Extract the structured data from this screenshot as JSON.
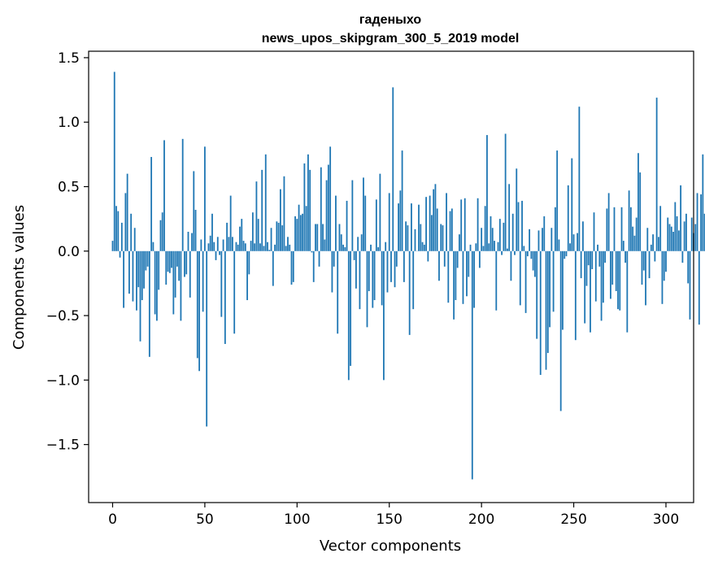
{
  "chart_data": {
    "type": "bar",
    "title_line1": "гаденыхо",
    "title_line2": "news_upos_skipgram_300_5_2019 model",
    "xlabel": "Vector components",
    "ylabel": "Components values",
    "xlim": [
      -13,
      315
    ],
    "ylim": [
      -1.95,
      1.55
    ],
    "x_ticks": [
      0,
      50,
      100,
      150,
      200,
      250,
      300
    ],
    "x_tick_labels": [
      "0",
      "50",
      "100",
      "150",
      "200",
      "250",
      "300"
    ],
    "y_ticks": [
      1.5,
      1.0,
      0.5,
      0.0,
      -0.5,
      -1.0,
      -1.5
    ],
    "y_tick_labels": [
      "1.5",
      "1.0",
      "0.5",
      "0.0",
      "−0.5",
      "−1.0",
      "−1.5"
    ],
    "bar_color": "#1f77b4",
    "grid": false,
    "values": [
      0.08,
      1.39,
      0.35,
      0.31,
      -0.05,
      0.22,
      -0.44,
      0.45,
      0.6,
      -0.33,
      0.29,
      -0.39,
      0.18,
      -0.46,
      -0.28,
      -0.7,
      -0.38,
      -0.29,
      -0.15,
      -0.12,
      -0.82,
      0.73,
      0.07,
      -0.49,
      -0.54,
      -0.3,
      0.24,
      0.3,
      0.86,
      -0.26,
      -0.16,
      -0.17,
      -0.13,
      -0.49,
      -0.36,
      -0.12,
      -0.23,
      -0.54,
      0.87,
      -0.2,
      -0.18,
      0.15,
      -0.36,
      0.14,
      0.62,
      0.32,
      -0.83,
      -0.93,
      0.09,
      -0.47,
      0.81,
      -1.36,
      0.06,
      0.12,
      0.29,
      0.07,
      -0.07,
      0.11,
      -0.03,
      -0.51,
      0.09,
      -0.72,
      0.22,
      0.11,
      0.43,
      0.11,
      -0.64,
      0.07,
      0.05,
      0.19,
      0.25,
      0.08,
      0.06,
      -0.38,
      -0.18,
      0.08,
      0.3,
      0.06,
      0.54,
      0.25,
      0.06,
      0.63,
      0.04,
      0.75,
      0.07,
      0.01,
      0.18,
      -0.27,
      0.05,
      0.23,
      0.22,
      0.48,
      0.2,
      0.58,
      0.04,
      0.11,
      0.05,
      -0.26,
      -0.24,
      0.27,
      0.25,
      0.36,
      0.28,
      0.29,
      0.68,
      0.35,
      0.75,
      0.63,
      -0.01,
      -0.24,
      0.21,
      0.21,
      -0.12,
      0.65,
      0.21,
      0.09,
      0.55,
      0.67,
      0.81,
      -0.32,
      -0.12,
      0.43,
      -0.64,
      0.21,
      0.13,
      0.05,
      0.03,
      0.39,
      -1.0,
      -0.89,
      0.55,
      -0.07,
      -0.29,
      0.11,
      -0.45,
      0.13,
      0.57,
      0.43,
      -0.59,
      -0.31,
      0.05,
      -0.44,
      -0.38,
      0.4,
      0.03,
      0.6,
      -0.42,
      -1.0,
      0.07,
      -0.32,
      0.45,
      -0.24,
      1.27,
      -0.28,
      -0.12,
      0.37,
      0.47,
      0.78,
      -0.24,
      0.23,
      0.2,
      -0.65,
      0.37,
      -0.45,
      0.17,
      0.0,
      0.36,
      0.21,
      0.07,
      0.05,
      0.42,
      -0.08,
      0.43,
      0.28,
      0.48,
      0.52,
      0.33,
      -0.23,
      0.21,
      0.2,
      -0.12,
      0.45,
      -0.4,
      0.31,
      0.33,
      -0.53,
      -0.38,
      -0.13,
      0.13,
      0.4,
      -0.41,
      0.41,
      -0.35,
      -0.2,
      0.05,
      -1.77,
      -0.44,
      0.06,
      0.41,
      -0.13,
      0.18,
      0.04,
      0.35,
      0.9,
      0.06,
      0.27,
      0.18,
      0.08,
      -0.46,
      0.07,
      0.25,
      -0.03,
      0.22,
      0.91,
      0.02,
      0.52,
      -0.23,
      0.29,
      -0.03,
      0.64,
      0.38,
      -0.42,
      0.39,
      0.04,
      -0.48,
      -0.04,
      0.17,
      -0.06,
      -0.15,
      -0.2,
      -0.68,
      0.16,
      -0.96,
      0.18,
      0.27,
      -0.92,
      -0.79,
      -0.59,
      0.18,
      -0.47,
      0.34,
      0.78,
      0.09,
      -1.24,
      -0.61,
      -0.06,
      -0.04,
      0.51,
      0.06,
      0.72,
      0.13,
      -0.69,
      0.14,
      1.12,
      -0.21,
      0.23,
      -0.56,
      -0.27,
      -0.11,
      -0.63,
      -0.14,
      0.3,
      -0.39,
      0.05,
      -0.12,
      -0.54,
      -0.4,
      -0.09,
      0.33,
      0.45,
      -0.37,
      -0.26,
      0.34,
      -0.31,
      -0.45,
      -0.46,
      0.34,
      0.08,
      -0.09,
      -0.63,
      0.47,
      0.34,
      0.19,
      0.12,
      0.26,
      0.76,
      0.61,
      -0.26,
      -0.15,
      -0.42,
      0.18,
      -0.21,
      0.05,
      0.13,
      -0.08,
      1.19,
      0.11,
      0.35,
      -0.41,
      -0.23,
      -0.16,
      0.26,
      0.21,
      0.19,
      0.15,
      0.38,
      0.27,
      0.16,
      0.51,
      -0.09,
      0.23,
      0.29,
      -0.25,
      -0.53,
      0.26,
      0.14,
      0.21,
      0.45,
      -0.57,
      0.44,
      0.75,
      0.29,
      -0.41,
      0.36
    ]
  }
}
